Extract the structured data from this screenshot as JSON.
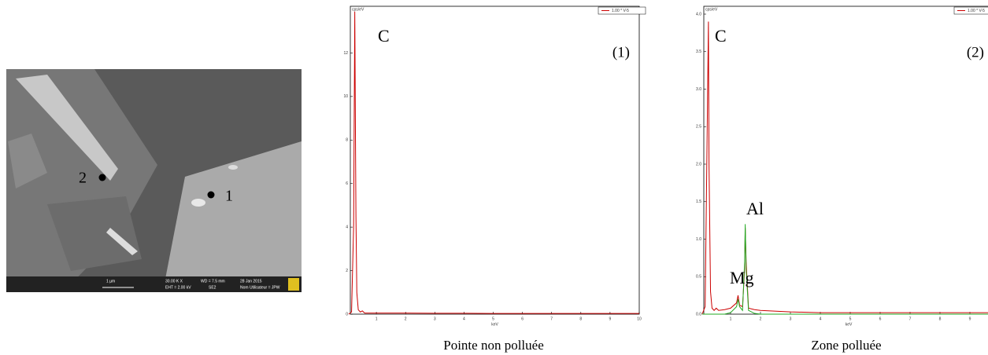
{
  "sem_image": {
    "points": [
      "2",
      "1"
    ],
    "info": [
      "1 µm",
      "30.00 K X",
      "WD = 7.5 mm",
      "28 Jan 2015",
      "EHT = 2.00 kV",
      "SE2",
      "Nom Utilisateur = JPW"
    ]
  },
  "chart_data": [
    {
      "type": "line",
      "title": "Pointe non polluée",
      "ylabel": "cps/eV",
      "xlabel": "keV",
      "tag": "(1)",
      "annotations": [
        {
          "text": "C",
          "x": 0.28,
          "y": 13.9
        }
      ],
      "x": [
        0.05,
        0.15,
        0.22,
        0.26,
        0.28,
        0.3,
        0.33,
        0.38,
        0.45,
        0.52,
        0.6,
        0.8,
        1.0,
        1.2,
        1.25,
        1.3,
        1.4,
        1.47,
        1.49,
        1.52,
        1.6,
        1.8,
        2,
        3,
        4,
        5,
        6,
        7,
        8,
        9,
        10
      ],
      "series": [
        {
          "name": "1.00 * V-5",
          "color": "#cc0000",
          "values": [
            0,
            0.1,
            4,
            13.9,
            9,
            4.5,
            1,
            0.2,
            0.1,
            0.15,
            0.05,
            0.05,
            0.05,
            0.05,
            0.05,
            0.05,
            0.05,
            0.05,
            0.05,
            0.05,
            0.05,
            0.05,
            0.05,
            0.04,
            0.04,
            0.03,
            0.03,
            0.03,
            0.03,
            0.03,
            0.03
          ]
        }
      ],
      "xlim": [
        0,
        10
      ],
      "xticks": [
        1,
        2,
        3,
        4,
        5,
        6,
        7,
        8,
        9,
        10
      ],
      "ylim": [
        0,
        14
      ],
      "yticks": [
        0,
        2,
        4,
        6,
        8,
        10,
        12
      ]
    },
    {
      "type": "line",
      "title": "Zone polluée",
      "ylabel": "cps/eV",
      "xlabel": "keV",
      "tag": "(2)",
      "annotations": [
        {
          "text": "C",
          "x": 0.28,
          "y": 3.9
        },
        {
          "text": "Al",
          "x": 1.49,
          "y": 1.15
        },
        {
          "text": "Mg",
          "x": 1.25,
          "y": 0.25
        }
      ],
      "x": [
        0.05,
        0.15,
        0.22,
        0.26,
        0.28,
        0.3,
        0.33,
        0.38,
        0.45,
        0.52,
        0.6,
        0.8,
        1.0,
        1.2,
        1.25,
        1.3,
        1.4,
        1.47,
        1.49,
        1.52,
        1.6,
        1.8,
        2,
        3,
        4,
        5,
        6,
        7,
        8,
        9,
        10
      ],
      "series": [
        {
          "name": "1.00 * V-5",
          "color": "#cc0000",
          "values": [
            0,
            0.1,
            2.5,
            3.9,
            2,
            1.3,
            0.3,
            0.08,
            0.05,
            0.08,
            0.05,
            0.06,
            0.08,
            0.15,
            0.25,
            0.12,
            0.1,
            0.6,
            1.15,
            0.7,
            0.08,
            0.06,
            0.05,
            0.03,
            0.02,
            0.02,
            0.02,
            0.02,
            0.02,
            0.02,
            0.02
          ]
        },
        {
          "color": "#22aa22",
          "values": [
            0,
            0,
            0,
            0,
            0,
            0,
            0,
            0,
            0,
            0,
            0,
            0,
            0.02,
            0.1,
            0.2,
            0.1,
            0.05,
            0.7,
            1.2,
            0.6,
            0.05,
            0.01,
            0,
            0,
            0,
            0,
            0,
            0,
            0,
            0,
            0
          ]
        }
      ],
      "xlim": [
        0,
        10
      ],
      "xticks": [
        1,
        2,
        3,
        4,
        5,
        6,
        7,
        8,
        9
      ],
      "ylim": [
        0,
        4
      ],
      "yticks": [
        {
          "value": 0,
          "label": "0.0"
        },
        0.5,
        {
          "value": 1,
          "label": "1.0"
        },
        1.5,
        {
          "value": 2,
          "label": "2.0"
        },
        2.5,
        {
          "value": 3,
          "label": "3.0"
        },
        3.5,
        {
          "value": 4,
          "label": "4.0"
        }
      ]
    }
  ]
}
